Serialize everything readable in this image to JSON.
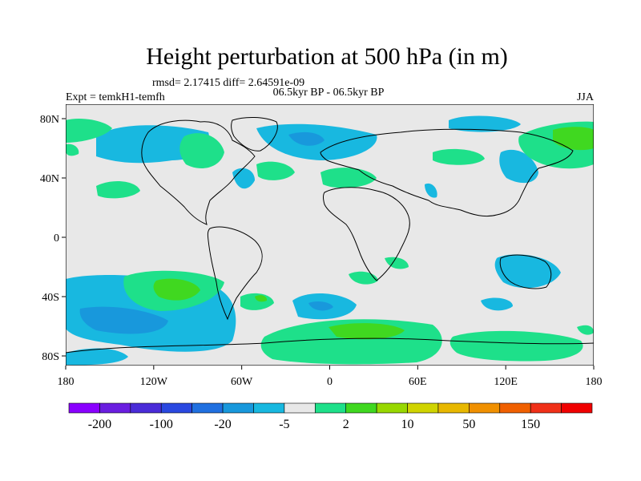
{
  "title": "Height perturbation at 500 hPa (in m)",
  "stats": "rmsd= 2.17415 diff= 2.64591e-09",
  "experiment": "Expt = temkH1-temfh",
  "period": "06.5kyr BP - 06.5kyr BP",
  "season": "JJA",
  "lat_ticks": [
    "80N",
    "40N",
    "0",
    "40S",
    "80S"
  ],
  "lon_ticks": [
    "180",
    "120W",
    "60W",
    "0",
    "60E",
    "120E",
    "180"
  ],
  "colorbar": {
    "colors": [
      "#8a00ff",
      "#6a1ee0",
      "#4a2cd8",
      "#2a48e0",
      "#2070e0",
      "#1898dc",
      "#18b8e0",
      "#e8e8e8",
      "#1ee08a",
      "#40d820",
      "#98d800",
      "#d0d400",
      "#e8b800",
      "#f09000",
      "#f06000",
      "#f03018",
      "#f00000"
    ],
    "labels": [
      "-200",
      "-100",
      "-20",
      "-5",
      "2",
      "10",
      "50",
      "150"
    ]
  },
  "map_colors": {
    "background": "#e8e8e8",
    "neg_light": "#18b8e0",
    "neg_mid": "#1898dc",
    "pos_light": "#1ee08a",
    "pos_mid": "#40d820",
    "coast": "#000000"
  }
}
